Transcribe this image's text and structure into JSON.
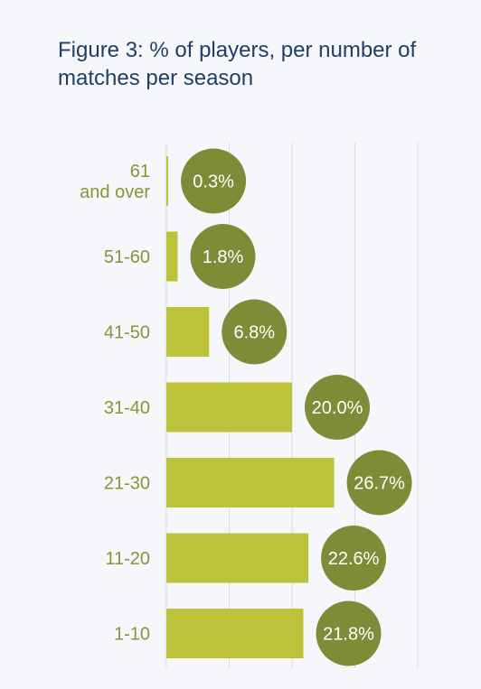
{
  "chart_data": {
    "type": "bar",
    "orientation": "horizontal",
    "title": "Figure 3: % of players, per number of matches per season",
    "categories": [
      [
        "61",
        "and over"
      ],
      [
        "51-60"
      ],
      [
        "41-50"
      ],
      [
        "31-40"
      ],
      [
        "21-30"
      ],
      [
        "11-20"
      ],
      [
        "1-10"
      ]
    ],
    "values": [
      0.3,
      1.8,
      6.8,
      20.0,
      26.7,
      22.6,
      21.8
    ],
    "value_labels": [
      "0.3%",
      "1.8%",
      "6.8%",
      "20.0%",
      "26.7%",
      "22.6%",
      "21.8%"
    ],
    "xlim": [
      0,
      40
    ],
    "grid": true,
    "xlabel": "",
    "ylabel": "",
    "colors": {
      "bar": "#bcc23a",
      "bubble": "#7e8c37",
      "category_text": "#8a9433",
      "grid": "#d9dce0"
    }
  }
}
